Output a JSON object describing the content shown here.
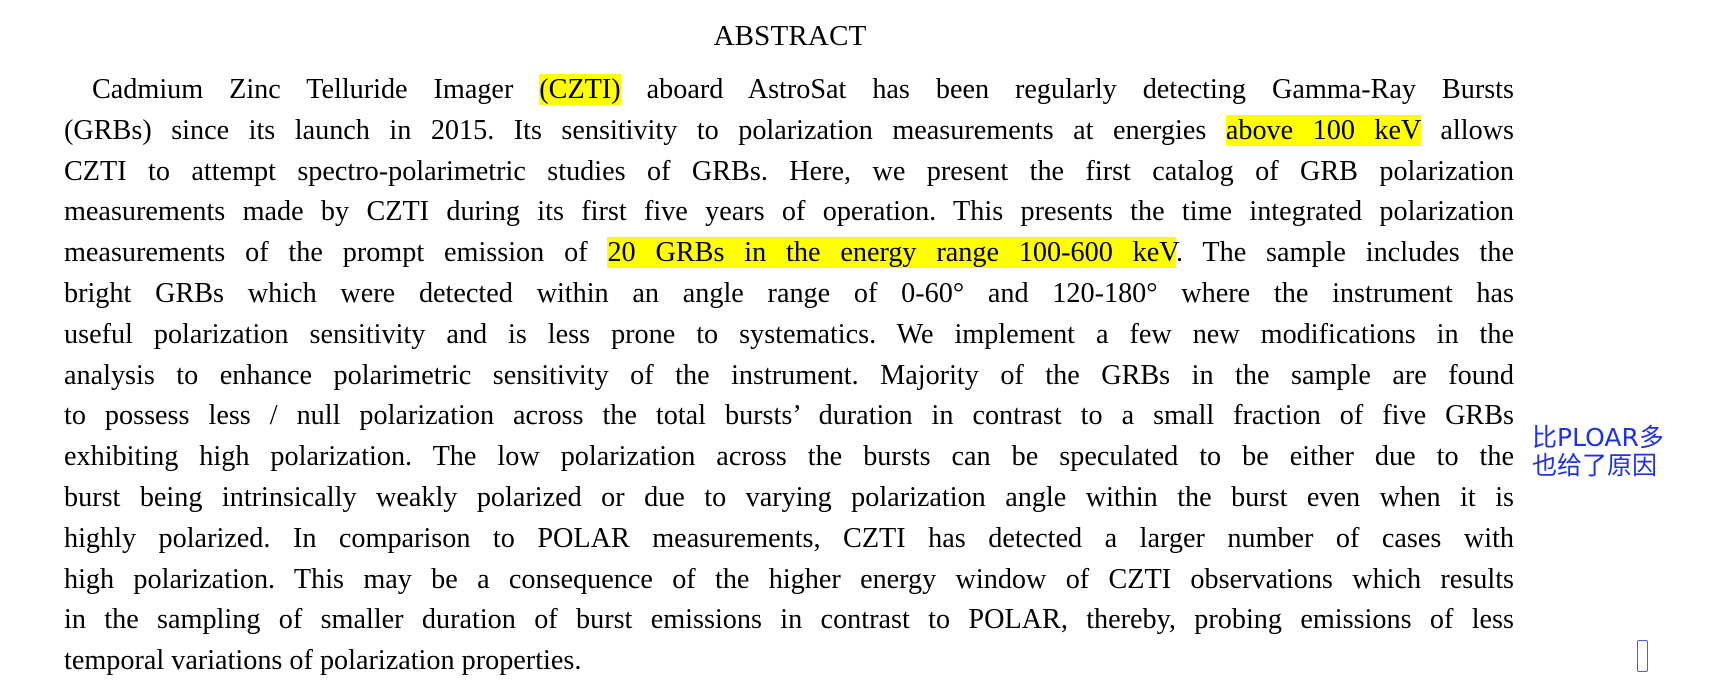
{
  "heading": "ABSTRACT",
  "abstract": {
    "lines": [
      [
        {
          "t": "Cadmium Zinc Telluride Imager "
        },
        {
          "t": "(CZTI)",
          "hl": true
        },
        {
          "t": " aboard AstroSat has been regularly detecting Gamma-Ray Bursts"
        }
      ],
      [
        {
          "t": "(GRBs) since its launch in 2015.  Its sensitivity to polarization measurements at energies "
        },
        {
          "t": "above 100 keV",
          "hl": true
        },
        {
          "t": " allows"
        }
      ],
      [
        {
          "t": "CZTI to attempt spectro-polarimetric studies of GRBs.  Here, we present the first catalog of GRB polarization"
        }
      ],
      [
        {
          "t": "measurements made by CZTI during its first five years of operation.  This presents the time integrated polarization"
        }
      ],
      [
        {
          "t": "measurements of the prompt emission of "
        },
        {
          "t": "20 GRBs in the energy range 100-600 keV",
          "hl": true
        },
        {
          "t": ". The sample includes the"
        }
      ],
      [
        {
          "t": "bright GRBs which were detected within an angle range of 0-60° and 120-180° where the instrument has"
        }
      ],
      [
        {
          "t": "useful polarization sensitivity and is less prone to systematics.  We implement a few new modifications in the"
        }
      ],
      [
        {
          "t": "analysis to enhance polarimetric sensitivity of the instrument.  Majority of the GRBs in the sample are found"
        }
      ],
      [
        {
          "t": "to possess less / null polarization across the total bursts’ duration in contrast to a small fraction of five GRBs"
        }
      ],
      [
        {
          "t": "exhibiting high polarization.  The low polarization across the bursts can be speculated to be either due to the"
        }
      ],
      [
        {
          "t": "burst being intrinsically weakly polarized or due to varying polarization angle within the burst even when it is"
        }
      ],
      [
        {
          "t": "highly polarized.  In comparison to POLAR measurements, CZTI has detected a larger number of cases with"
        }
      ],
      [
        {
          "t": "high polarization. This may be a consequence of the higher energy window of CZTI observations which results"
        }
      ],
      [
        {
          "t": "in the sampling of smaller duration of burst emissions in contrast to POLAR, thereby, probing emissions of less"
        }
      ],
      [
        {
          "t": "temporal variations of polarization properties."
        }
      ]
    ]
  },
  "margin_note": {
    "line1": "比PLOAR多",
    "line2": "也给了原因"
  },
  "colors": {
    "highlight": "#ffff00",
    "note": "#1f33e6"
  }
}
